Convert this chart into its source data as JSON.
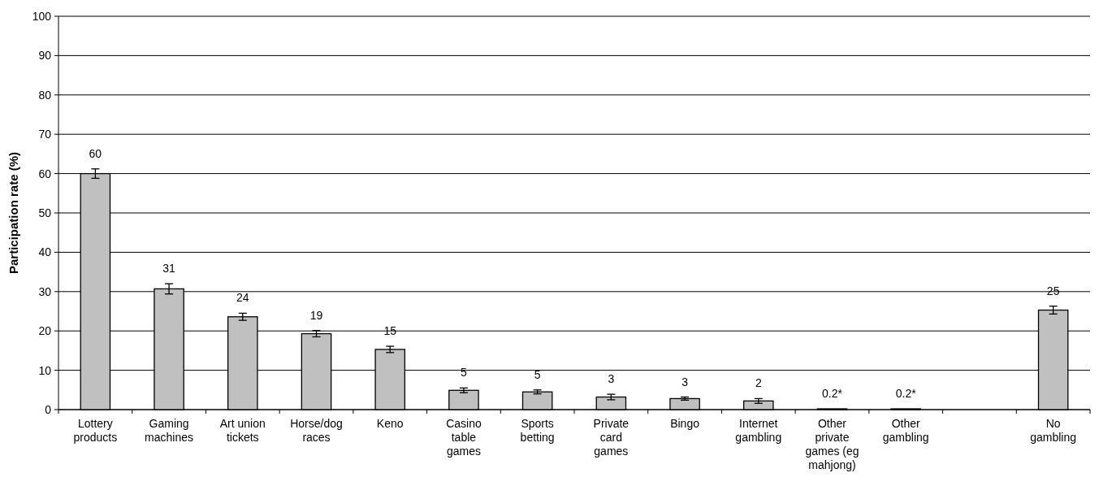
{
  "chart_data": {
    "type": "bar",
    "ylabel": "Participation rate (%)",
    "categories": [
      "Lottery products",
      "Gaming machines",
      "Art union tickets",
      "Horse/dog races",
      "Keno",
      "Casino table games",
      "Sports betting",
      "Private card games",
      "Bingo",
      "Internet gambling",
      "Other private games (eg mahjong)",
      "Other gambling",
      null,
      "No gambling"
    ],
    "values": [
      60,
      30.7,
      23.6,
      19.3,
      15.3,
      4.9,
      4.5,
      3.2,
      2.8,
      2.2,
      0.2,
      0.2,
      null,
      25.3
    ],
    "errors": [
      1.2,
      1.3,
      0.9,
      0.8,
      0.8,
      0.6,
      0.5,
      0.7,
      0.4,
      0.6,
      null,
      null,
      null,
      1.0
    ],
    "value_labels": [
      "60",
      "31",
      "24",
      "19",
      "15",
      "5",
      "5",
      "3",
      "3",
      "2",
      "0.2*",
      "0.2*",
      null,
      "25"
    ],
    "color": "#c0c0c0",
    "ylim": [
      0,
      100
    ],
    "yticks": [
      0,
      10,
      20,
      30,
      40,
      50,
      60,
      70,
      80,
      90,
      100
    ],
    "grid": "y"
  }
}
